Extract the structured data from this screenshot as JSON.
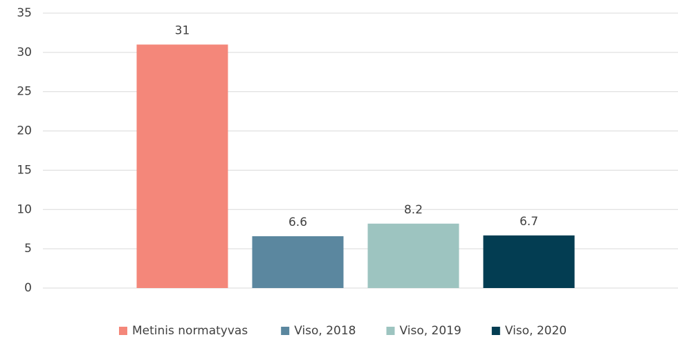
{
  "chart_data": {
    "type": "bar",
    "categories": [
      null
    ],
    "series": [
      {
        "name": "Metinis normatyvas",
        "color": "#f4877a",
        "values": [
          31
        ]
      },
      {
        "name": "Viso, 2018",
        "color": "#5b879f",
        "values": [
          6.6
        ]
      },
      {
        "name": "Viso, 2019",
        "color": "#9dc4c0",
        "values": [
          8.2
        ]
      },
      {
        "name": "Viso, 2020",
        "color": "#033d52",
        "values": [
          6.7
        ]
      }
    ],
    "ylim": [
      0,
      35
    ],
    "yticks": [
      0,
      5,
      10,
      15,
      20,
      25,
      30,
      35
    ],
    "grid": true,
    "legend": "bottom"
  }
}
